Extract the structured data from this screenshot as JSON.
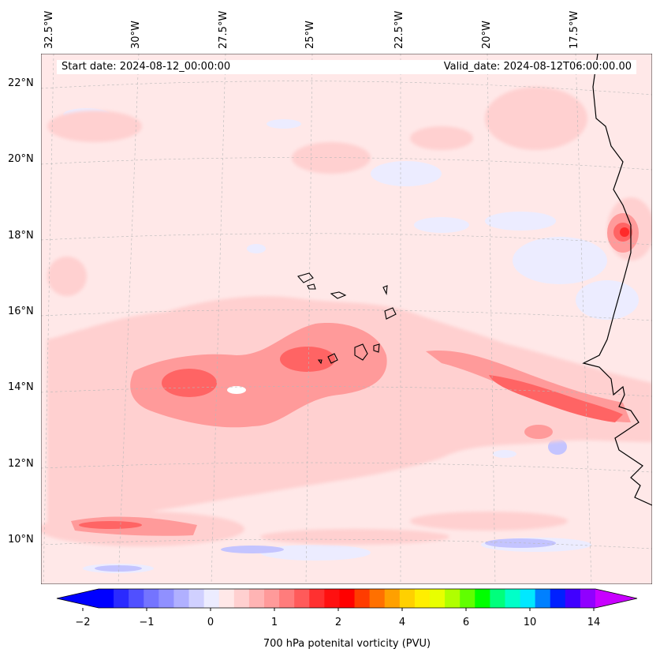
{
  "map": {
    "start_date": "Start date: 2024-08-12_00:00:00",
    "valid_date": "Valid_date: 2024-08-12T06:00:00.00",
    "longitude_labels": [
      "32.5°W",
      "30°W",
      "27.5°W",
      "25°W",
      "22.5°W",
      "20°W",
      "17.5°W"
    ],
    "latitude_labels": [
      "22°N",
      "20°N",
      "18°N",
      "16°N",
      "14°N",
      "12°N",
      "10°N"
    ],
    "field": "700 hPa potential vorticity",
    "colors": {
      "background": "#ffe8e8",
      "light_pink": "#ffd0d0",
      "pink": "#ff9a9a",
      "red": "#ff6464",
      "deep_red": "#ff2a2a",
      "light_blue": "#ececff",
      "blue": "#c4c4ff",
      "coastline": "#000000"
    }
  },
  "colorbar": {
    "title": "700 hPa potenital vorticity (PVU)",
    "tick_labels": [
      "−2",
      "−1",
      "0",
      "1",
      "2",
      "4",
      "6",
      "10",
      "14"
    ],
    "colors": [
      "#0000ff",
      "#2a2aff",
      "#5050ff",
      "#7474ff",
      "#9090ff",
      "#b0b0ff",
      "#d0d0ff",
      "#ececff",
      "#ffe8e8",
      "#ffd0d0",
      "#ffb4b4",
      "#ff9a9a",
      "#ff7c7c",
      "#ff5a5a",
      "#ff3030",
      "#ff1010",
      "#ff0000",
      "#ff3c00",
      "#ff7000",
      "#ffa000",
      "#ffd000",
      "#ffee00",
      "#e8ff00",
      "#b0ff00",
      "#60ff00",
      "#00ff00",
      "#00ff7c",
      "#00ffc8",
      "#00e8ff",
      "#0080ff",
      "#0020ff",
      "#4000ff",
      "#9000ff"
    ],
    "extend_low_color": "#0000ff",
    "extend_high_color": "#c800ff"
  }
}
